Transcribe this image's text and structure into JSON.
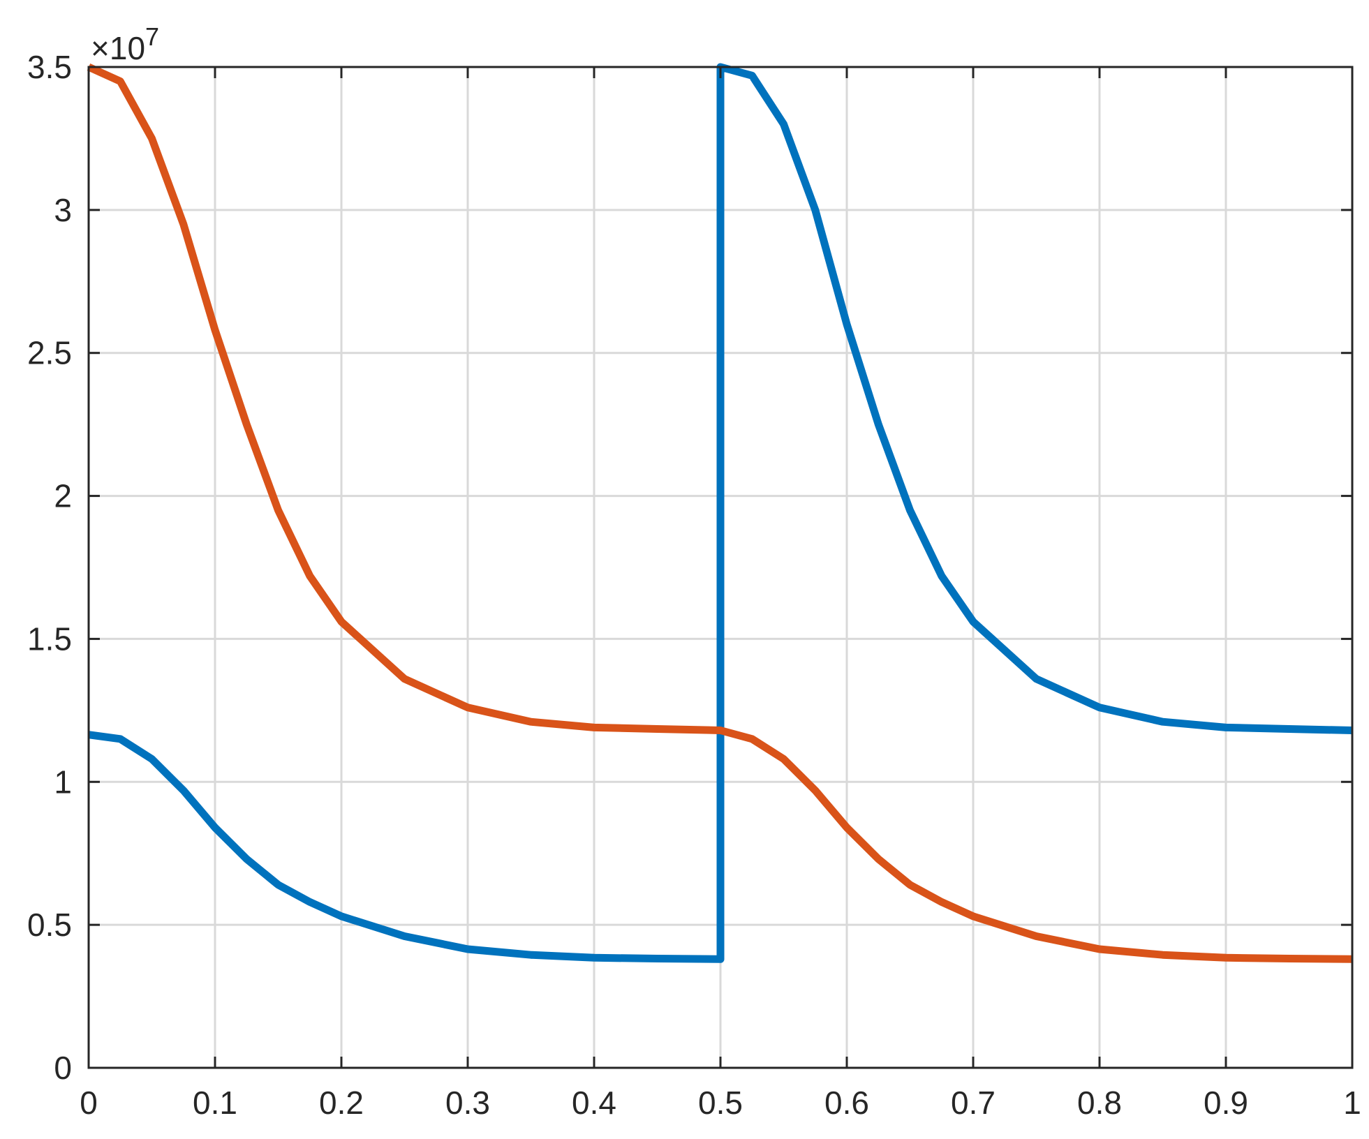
{
  "chart_data": {
    "type": "line",
    "title": "",
    "xlabel": "",
    "ylabel": "",
    "xlim": [
      0,
      1
    ],
    "ylim": [
      0,
      35000000
    ],
    "y_exponent_label": "×10",
    "y_exponent_power": "7",
    "grid": true,
    "x_ticks": [
      0,
      0.1,
      0.2,
      0.3,
      0.4,
      0.5,
      0.6,
      0.7,
      0.8,
      0.9,
      1
    ],
    "x_tick_labels": [
      "0",
      "0.1",
      "0.2",
      "0.3",
      "0.4",
      "0.5",
      "0.6",
      "0.7",
      "0.8",
      "0.9",
      "1"
    ],
    "y_ticks": [
      0,
      5000000,
      10000000,
      15000000,
      20000000,
      25000000,
      30000000,
      35000000
    ],
    "y_tick_labels": [
      "0",
      "0.5",
      "1",
      "1.5",
      "2",
      "2.5",
      "3",
      "3.5"
    ],
    "series": [
      {
        "color": "#0072BD",
        "points": [
          [
            0.0,
            11650000
          ],
          [
            0.025,
            11500000
          ],
          [
            0.05,
            10800000
          ],
          [
            0.075,
            9700000
          ],
          [
            0.1,
            8400000
          ],
          [
            0.125,
            7300000
          ],
          [
            0.15,
            6400000
          ],
          [
            0.175,
            5800000
          ],
          [
            0.2,
            5300000
          ],
          [
            0.25,
            4600000
          ],
          [
            0.3,
            4150000
          ],
          [
            0.35,
            3950000
          ],
          [
            0.4,
            3850000
          ],
          [
            0.45,
            3820000
          ],
          [
            0.5,
            3800000
          ],
          [
            0.5,
            35000000
          ],
          [
            0.525,
            34700000
          ],
          [
            0.55,
            33000000
          ],
          [
            0.575,
            30000000
          ],
          [
            0.6,
            26000000
          ],
          [
            0.625,
            22500000
          ],
          [
            0.65,
            19500000
          ],
          [
            0.675,
            17200000
          ],
          [
            0.7,
            15600000
          ],
          [
            0.75,
            13600000
          ],
          [
            0.8,
            12600000
          ],
          [
            0.85,
            12100000
          ],
          [
            0.9,
            11900000
          ],
          [
            0.95,
            11850000
          ],
          [
            1.0,
            11800000
          ]
        ]
      },
      {
        "color": "#D95319",
        "points": [
          [
            0.0,
            35000000
          ],
          [
            0.025,
            34500000
          ],
          [
            0.05,
            32500000
          ],
          [
            0.075,
            29500000
          ],
          [
            0.1,
            25800000
          ],
          [
            0.125,
            22500000
          ],
          [
            0.15,
            19500000
          ],
          [
            0.175,
            17200000
          ],
          [
            0.2,
            15600000
          ],
          [
            0.25,
            13600000
          ],
          [
            0.3,
            12600000
          ],
          [
            0.35,
            12100000
          ],
          [
            0.4,
            11900000
          ],
          [
            0.45,
            11850000
          ],
          [
            0.5,
            11800000
          ],
          [
            0.525,
            11500000
          ],
          [
            0.55,
            10800000
          ],
          [
            0.575,
            9700000
          ],
          [
            0.6,
            8400000
          ],
          [
            0.625,
            7300000
          ],
          [
            0.65,
            6400000
          ],
          [
            0.675,
            5800000
          ],
          [
            0.7,
            5300000
          ],
          [
            0.75,
            4600000
          ],
          [
            0.8,
            4150000
          ],
          [
            0.85,
            3950000
          ],
          [
            0.9,
            3850000
          ],
          [
            0.95,
            3820000
          ],
          [
            1.0,
            3800000
          ]
        ]
      }
    ]
  }
}
